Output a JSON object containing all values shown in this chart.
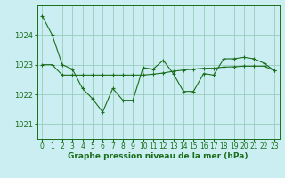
{
  "title": "Graphe pression niveau de la mer (hPa)",
  "background_color": "#cbeef3",
  "grid_color": "#99ccbb",
  "line_color": "#1a6e1a",
  "xlim": [
    -0.5,
    23.5
  ],
  "ylim": [
    1020.5,
    1025.0
  ],
  "yticks": [
    1021,
    1022,
    1023,
    1024
  ],
  "xticks": [
    0,
    1,
    2,
    3,
    4,
    5,
    6,
    7,
    8,
    9,
    10,
    11,
    12,
    13,
    14,
    15,
    16,
    17,
    18,
    19,
    20,
    21,
    22,
    23
  ],
  "line1_x": [
    0,
    1,
    2,
    3,
    4,
    5,
    6,
    7,
    8,
    9,
    10,
    11,
    12,
    13,
    14,
    15,
    16,
    17,
    18,
    19,
    20,
    21,
    22,
    23
  ],
  "line1_y": [
    1024.65,
    1024.0,
    1023.0,
    1022.85,
    1022.2,
    1021.85,
    1021.4,
    1022.2,
    1021.8,
    1021.8,
    1022.9,
    1022.85,
    1023.15,
    1022.7,
    1022.1,
    1022.1,
    1022.7,
    1022.65,
    1023.2,
    1023.2,
    1023.25,
    1023.2,
    1023.05,
    1022.8
  ],
  "line2_x": [
    0,
    1,
    2,
    3,
    4,
    5,
    6,
    7,
    8,
    9,
    10,
    11,
    12,
    13,
    14,
    15,
    16,
    17,
    18,
    19,
    20,
    21,
    22,
    23
  ],
  "line2_y": [
    1023.0,
    1023.0,
    1022.65,
    1022.65,
    1022.65,
    1022.65,
    1022.65,
    1022.65,
    1022.65,
    1022.65,
    1022.65,
    1022.68,
    1022.72,
    1022.78,
    1022.82,
    1022.85,
    1022.88,
    1022.88,
    1022.92,
    1022.93,
    1022.95,
    1022.95,
    1022.95,
    1022.8
  ],
  "tick_fontsize": 5.5,
  "title_fontsize": 6.5
}
